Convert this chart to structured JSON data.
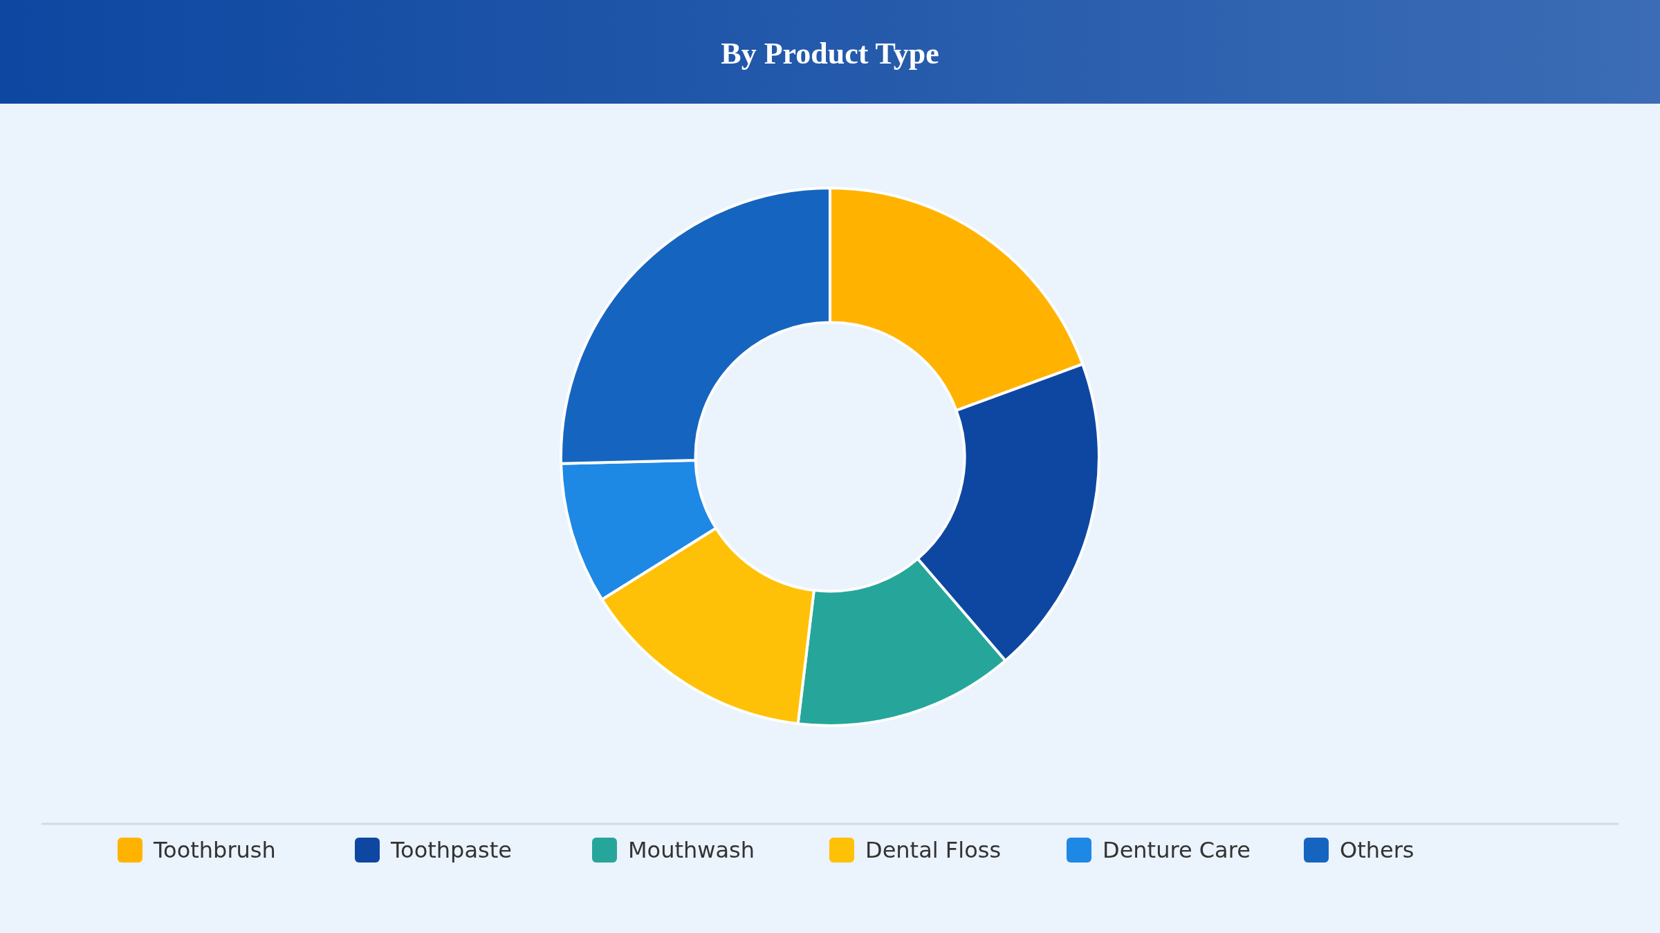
{
  "chart_data": {
    "type": "donut",
    "title": "By Product Type",
    "categories": [
      "Toothbrush",
      "Toothpaste",
      "Mouthwash",
      "Dental Floss",
      "Denture Care",
      "Others"
    ],
    "values": [
      19.4,
      19.3,
      13.2,
      14.2,
      8.5,
      25.4
    ],
    "colors": [
      "#ffb300",
      "#0d47a1",
      "#26a69a",
      "#ffc107",
      "#1e88e5",
      "#1565c0"
    ],
    "legend": "bottom"
  }
}
